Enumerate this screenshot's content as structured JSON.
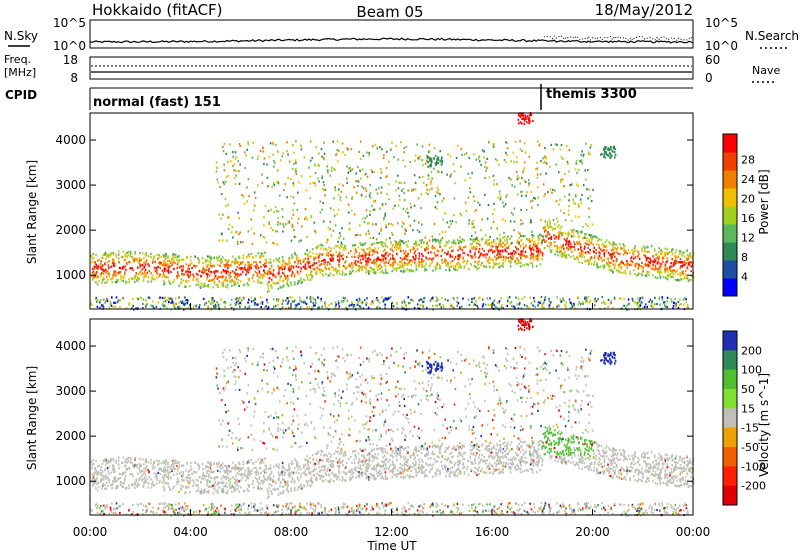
{
  "header": {
    "station": "Hokkaido (fitACF)",
    "beam": "Beam 05",
    "date": "18/May/2012"
  },
  "side_labels": {
    "nsky": "N.Sky",
    "freq_line1": "Freq.",
    "freq_line2": "[MHz]",
    "cpid": "CPID",
    "nsearch": "N.Search",
    "nave": "Nave"
  },
  "top_axes": {
    "nsky_ticks": [
      "10^5",
      "10^0"
    ],
    "nsearch_ticks": [
      "10^5",
      "10^0"
    ],
    "freq_ticks": [
      "18",
      "8"
    ],
    "nave_ticks": [
      "60",
      "0"
    ]
  },
  "cpid_segments": [
    {
      "label": "normal (fast) 151",
      "start_hour": 0
    },
    {
      "label": "themis 3300",
      "start_hour": 18.0
    }
  ],
  "chart_data": [
    {
      "type": "heatmap",
      "title": "",
      "xlabel": "",
      "ylabel": "Slant Range [km]",
      "x_tick_labels": [
        "00:00",
        "04:00",
        "08:00",
        "12:00",
        "16:00",
        "20:00",
        "00:00"
      ],
      "xlim_hours": [
        0,
        24
      ],
      "ylim": [
        250,
        4600
      ],
      "y_tick_labels": [
        "1000",
        "2000",
        "3000",
        "4000"
      ],
      "colorbar": {
        "label": "Power [dB]",
        "range": [
          0,
          30
        ],
        "tick_labels": [
          "4",
          "8",
          "12",
          "16",
          "20",
          "24",
          "28"
        ]
      }
    },
    {
      "type": "heatmap",
      "title": "",
      "xlabel": "Time UT",
      "ylabel": "Slant Range [km]",
      "x_tick_labels": [
        "00:00",
        "04:00",
        "08:00",
        "12:00",
        "16:00",
        "20:00",
        "00:00"
      ],
      "xlim_hours": [
        0,
        24
      ],
      "ylim": [
        250,
        4600
      ],
      "y_tick_labels": [
        "1000",
        "2000",
        "3000",
        "4000"
      ],
      "colorbar": {
        "label": "Velocity [m s^-1]",
        "range": [
          -250,
          250
        ],
        "tick_labels": [
          "200",
          "100",
          "50",
          "15",
          "-15",
          "-50",
          "-100",
          "-200"
        ]
      }
    }
  ],
  "colors": {
    "power": [
      "#0000ff",
      "#1f4fa0",
      "#2e8a57",
      "#5cb85c",
      "#a0d020",
      "#f0c000",
      "#f08000",
      "#f04000",
      "#ff0000"
    ],
    "velocity": [
      "#2030b0",
      "#2e8a57",
      "#50c030",
      "#7fe030",
      "#c0c0b8",
      "#f0a000",
      "#f06000",
      "#ff2000",
      "#e00000"
    ],
    "ground_scatter": "#c0c0b8"
  }
}
